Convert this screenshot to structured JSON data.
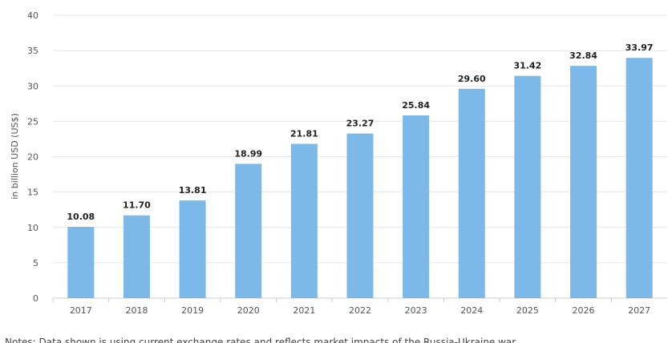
{
  "chart_data": {
    "type": "bar",
    "categories": [
      "2017",
      "2018",
      "2019",
      "2020",
      "2021",
      "2022",
      "2023",
      "2024",
      "2025",
      "2026",
      "2027"
    ],
    "values": [
      10.08,
      11.7,
      13.81,
      18.99,
      21.81,
      23.27,
      25.84,
      29.6,
      31.42,
      32.84,
      33.97
    ],
    "value_labels": [
      "10.08",
      "11.70",
      "13.81",
      "18.99",
      "21.81",
      "23.27",
      "25.84",
      "29.60",
      "31.42",
      "32.84",
      "33.97"
    ],
    "title": "",
    "xlabel": "",
    "ylabel": "in billion USD (US$)",
    "ylim": [
      0,
      40
    ],
    "yticks": [
      "0",
      "5",
      "10",
      "15",
      "20",
      "25",
      "30",
      "35",
      "40"
    ],
    "grid": true,
    "legend": "none",
    "colors": {
      "bar": "#7cb9e8",
      "grid": "#e6e6e6",
      "axis": "#cccccc"
    }
  },
  "footnote": "Notes: Data shown is using current exchange rates and reflects market impacts of the Russia-Ukraine war."
}
